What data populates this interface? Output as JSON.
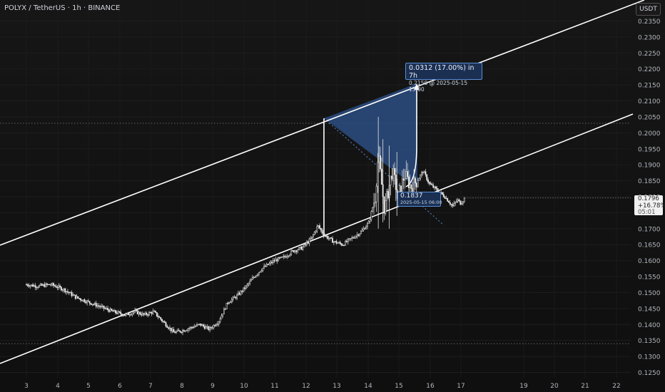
{
  "header": {
    "title": "POLYX / TetherUS · 1h · BINANCE"
  },
  "axis": {
    "currency": "USDT"
  },
  "last_price": {
    "value": "0.1796",
    "change": "+16.78%",
    "countdown": "05:01"
  },
  "measure": {
    "label": "0.0312 (17.00%) in 7h",
    "target": "0.2150 @ 2025-05-15  13:00",
    "low_price": "0.1837",
    "low_date": "2025-05-15 06:00"
  },
  "colors": {
    "background": "#131313",
    "candle": "#e6e6e6",
    "channel": "#ffffff",
    "measure_fill": "#2c4c80",
    "measure_stroke": "#5a8fd6"
  },
  "chart_data": {
    "type": "candlestick",
    "title": "",
    "x_ticks": [
      "3",
      "4",
      "5",
      "6",
      "7",
      "8",
      "9",
      "10",
      "11",
      "12",
      "13",
      "14",
      "15",
      "16",
      "17",
      "19",
      "20",
      "21",
      "22"
    ],
    "y_ticks": [
      "0.2350",
      "0.2300",
      "0.2250",
      "0.2200",
      "0.2150",
      "0.2100",
      "0.2050",
      "0.2000",
      "0.1950",
      "0.1900",
      "0.1850",
      "0.1800",
      "0.1750",
      "0.1700",
      "0.1650",
      "0.1600",
      "0.1550",
      "0.1500",
      "0.1450",
      "0.1400",
      "0.1350",
      "0.1300",
      "0.1250"
    ],
    "ylim": [
      0.125,
      0.236
    ],
    "close_path": [
      {
        "t": 0.0,
        "p": 0.1525
      },
      {
        "t": 0.35,
        "p": 0.152
      },
      {
        "t": 0.8,
        "p": 0.1525
      },
      {
        "t": 1.2,
        "p": 0.151
      },
      {
        "t": 1.6,
        "p": 0.1485
      },
      {
        "t": 2.0,
        "p": 0.147
      },
      {
        "t": 2.4,
        "p": 0.1455
      },
      {
        "t": 2.8,
        "p": 0.144
      },
      {
        "t": 3.2,
        "p": 0.143
      },
      {
        "t": 3.5,
        "p": 0.144
      },
      {
        "t": 3.8,
        "p": 0.143
      },
      {
        "t": 4.1,
        "p": 0.144
      },
      {
        "t": 4.4,
        "p": 0.141
      },
      {
        "t": 4.75,
        "p": 0.1375
      },
      {
        "t": 5.0,
        "p": 0.138
      },
      {
        "t": 5.3,
        "p": 0.139
      },
      {
        "t": 5.6,
        "p": 0.14
      },
      {
        "t": 5.9,
        "p": 0.1385
      },
      {
        "t": 6.2,
        "p": 0.141
      },
      {
        "t": 6.5,
        "p": 0.147
      },
      {
        "t": 6.8,
        "p": 0.149
      },
      {
        "t": 7.1,
        "p": 0.152
      },
      {
        "t": 7.35,
        "p": 0.155
      },
      {
        "t": 7.6,
        "p": 0.1575
      },
      {
        "t": 8.0,
        "p": 0.16
      },
      {
        "t": 8.3,
        "p": 0.161
      },
      {
        "t": 8.6,
        "p": 0.163
      },
      {
        "t": 8.9,
        "p": 0.164
      },
      {
        "t": 9.2,
        "p": 0.167
      },
      {
        "t": 9.4,
        "p": 0.171
      },
      {
        "t": 9.6,
        "p": 0.168
      },
      {
        "t": 9.9,
        "p": 0.166
      },
      {
        "t": 10.2,
        "p": 0.165
      },
      {
        "t": 10.5,
        "p": 0.167
      },
      {
        "t": 10.8,
        "p": 0.169
      },
      {
        "t": 11.05,
        "p": 0.172
      },
      {
        "t": 11.25,
        "p": 0.18
      },
      {
        "t": 11.35,
        "p": 0.193
      },
      {
        "t": 11.55,
        "p": 0.176
      },
      {
        "t": 11.8,
        "p": 0.188
      },
      {
        "t": 12.0,
        "p": 0.18
      },
      {
        "t": 12.2,
        "p": 0.187
      },
      {
        "t": 12.4,
        "p": 0.183
      },
      {
        "t": 12.6,
        "p": 0.185
      },
      {
        "t": 12.8,
        "p": 0.188
      },
      {
        "t": 13.0,
        "p": 0.184
      },
      {
        "t": 13.25,
        "p": 0.182
      },
      {
        "t": 13.5,
        "p": 0.18
      },
      {
        "t": 13.75,
        "p": 0.177
      },
      {
        "t": 13.9,
        "p": 0.179
      },
      {
        "t": 14.0,
        "p": 0.178
      },
      {
        "t": 14.15,
        "p": 0.1796
      }
    ],
    "channel": {
      "upper": [
        {
          "t": -3.0,
          "p": 0.168
        },
        {
          "t": 15.4,
          "p": 0.238
        }
      ],
      "lower": [
        {
          "t": -3.0,
          "p": 0.132
        },
        {
          "t": 15.4,
          "p": 0.204
        }
      ]
    },
    "horizontal_levels": [
      0.203,
      0.134
    ],
    "measurement": {
      "from": {
        "t": 14.15,
        "p": 0.1837
      },
      "to": {
        "t": 14.4,
        "p": 0.215
      },
      "change": 0.0312,
      "change_pct": 17.0,
      "bars": 7
    }
  }
}
